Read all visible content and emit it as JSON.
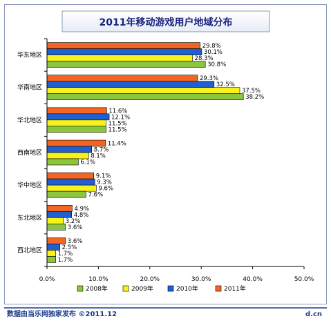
{
  "chart_data": {
    "type": "bar",
    "orientation": "horizontal",
    "title": "2011年移动游戏用户地域分布",
    "categories": [
      "华东地区",
      "华南地区",
      "华北地区",
      "西南地区",
      "华中地区",
      "东北地区",
      "西北地区"
    ],
    "series": [
      {
        "name": "2011年",
        "color": "#f26522",
        "values": [
          29.8,
          29.3,
          11.6,
          11.4,
          9.1,
          4.9,
          3.6
        ],
        "labels": [
          "29.8%",
          "29.3%",
          "11.6%",
          "11.4%",
          "9.1%",
          "4.9%",
          "3.6%"
        ]
      },
      {
        "name": "2010年",
        "color": "#1f5fd1",
        "values": [
          30.1,
          32.5,
          12.1,
          8.7,
          9.3,
          4.8,
          2.5
        ],
        "labels": [
          "30.1%",
          "32.5%",
          "12.1%",
          "8.7%",
          "9.3%",
          "4.8%",
          "2.5%"
        ]
      },
      {
        "name": "2009年",
        "color": "#f7f31a",
        "values": [
          28.3,
          37.5,
          11.5,
          8.1,
          9.6,
          3.2,
          1.7
        ],
        "labels": [
          "28.3%",
          "37.5%",
          "11.5%",
          "8.1%",
          "9.6%",
          "3.2%",
          "1.7%"
        ]
      },
      {
        "name": "2008年",
        "color": "#8cc63f",
        "values": [
          30.8,
          38.2,
          11.5,
          6.1,
          7.6,
          3.6,
          1.7
        ],
        "labels": [
          "30.8%",
          "38.2%",
          "11.5%",
          "6.1%",
          "7.6%",
          "3.6%",
          "1.7%"
        ]
      }
    ],
    "xlim": [
      0,
      50
    ],
    "xticks": [
      0,
      10,
      20,
      30,
      40,
      50
    ],
    "xtick_labels": [
      "0.0%",
      "10.0%",
      "20.0%",
      "30.0%",
      "40.0%",
      "50.0%"
    ],
    "legend": {
      "placement": "bottom",
      "order": [
        "2008年",
        "2009年",
        "2010年",
        "2011年"
      ]
    },
    "grid": false
  },
  "footer": {
    "source": "数据由当乐网独家发布 ©2011.12",
    "site": "d.cn"
  }
}
